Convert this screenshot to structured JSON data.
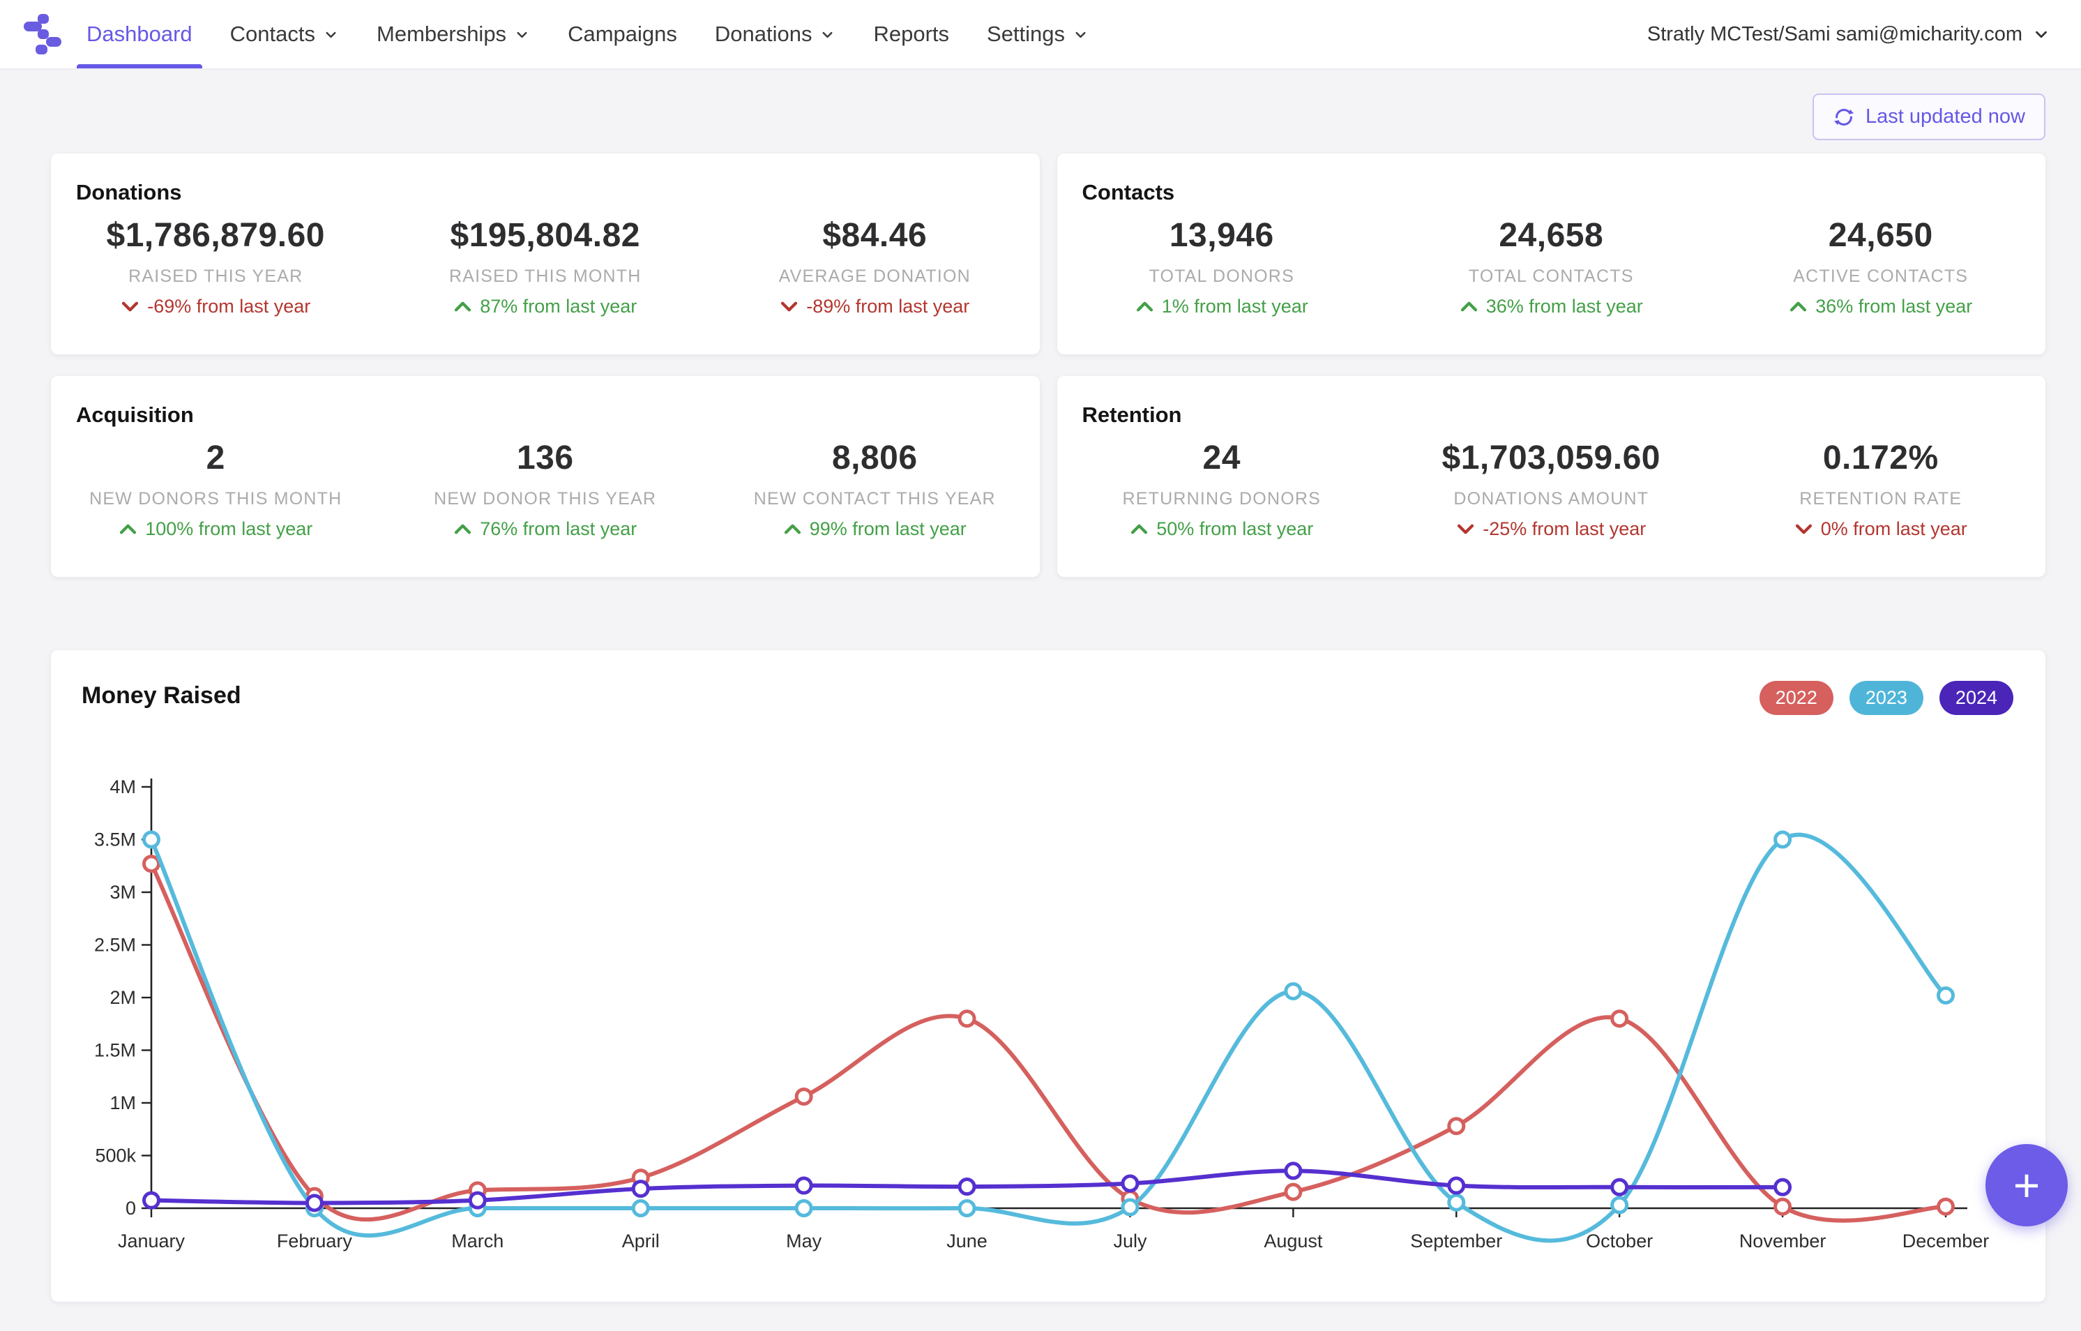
{
  "nav": {
    "items": [
      {
        "label": "Dashboard",
        "chevron": false,
        "active": true
      },
      {
        "label": "Contacts",
        "chevron": true,
        "active": false
      },
      {
        "label": "Memberships",
        "chevron": true,
        "active": false
      },
      {
        "label": "Campaigns",
        "chevron": false,
        "active": false
      },
      {
        "label": "Donations",
        "chevron": true,
        "active": false
      },
      {
        "label": "Reports",
        "chevron": false,
        "active": false
      },
      {
        "label": "Settings",
        "chevron": true,
        "active": false
      }
    ],
    "user_label": "Stratly MCTest/Sami sami@micharity.com"
  },
  "topbar": {
    "refresh_label": "Last updated now"
  },
  "stat_cards": [
    {
      "title": "Donations",
      "metrics": [
        {
          "value": "$1,786,879.60",
          "label": "RAISED THIS YEAR",
          "delta": "-69% from last year",
          "trend": "down"
        },
        {
          "value": "$195,804.82",
          "label": "RAISED THIS MONTH",
          "delta": "87% from last year",
          "trend": "up"
        },
        {
          "value": "$84.46",
          "label": "AVERAGE DONATION",
          "delta": "-89% from last year",
          "trend": "down"
        }
      ]
    },
    {
      "title": "Contacts",
      "metrics": [
        {
          "value": "13,946",
          "label": "TOTAL DONORS",
          "delta": "1% from last year",
          "trend": "up"
        },
        {
          "value": "24,658",
          "label": "TOTAL CONTACTS",
          "delta": "36% from last year",
          "trend": "up"
        },
        {
          "value": "24,650",
          "label": "ACTIVE CONTACTS",
          "delta": "36% from last year",
          "trend": "up"
        }
      ]
    },
    {
      "title": "Acquisition",
      "metrics": [
        {
          "value": "2",
          "label": "NEW DONORS THIS MONTH",
          "delta": "100% from last year",
          "trend": "up"
        },
        {
          "value": "136",
          "label": "NEW DONOR THIS YEAR",
          "delta": "76% from last year",
          "trend": "up"
        },
        {
          "value": "8,806",
          "label": "NEW CONTACT THIS YEAR",
          "delta": "99% from last year",
          "trend": "up"
        }
      ]
    },
    {
      "title": "Retention",
      "metrics": [
        {
          "value": "24",
          "label": "RETURNING DONORS",
          "delta": "50% from last year",
          "trend": "up"
        },
        {
          "value": "$1,703,059.60",
          "label": "DONATIONS AMOUNT",
          "delta": "-25% from last year",
          "trend": "down"
        },
        {
          "value": "0.172%",
          "label": "RETENTION RATE",
          "delta": "0% from last year",
          "trend": "down"
        }
      ]
    }
  ],
  "chart_data": {
    "type": "line",
    "title": "Money Raised",
    "x": [
      "January",
      "February",
      "March",
      "April",
      "May",
      "June",
      "July",
      "August",
      "September",
      "October",
      "November",
      "December"
    ],
    "y_ticks": [
      "0",
      "500k",
      "1M",
      "1.5M",
      "2M",
      "2.5M",
      "3M",
      "3.5M",
      "4M"
    ],
    "ylim": [
      0,
      4000000
    ],
    "grid": false,
    "legend_position": "top-right",
    "legend": [
      {
        "label": "2022",
        "color": "#D5605E"
      },
      {
        "label": "2023",
        "color": "#4FB5D8"
      },
      {
        "label": "2024",
        "color": "#4A25B8"
      }
    ],
    "series": [
      {
        "name": "2022",
        "color": "#D5605E",
        "values": [
          3270000,
          115000,
          170000,
          290000,
          1060000,
          1800000,
          90000,
          155000,
          780000,
          1800000,
          15000,
          15000
        ]
      },
      {
        "name": "2023",
        "color": "#55BADC",
        "values": [
          3500000,
          0,
          0,
          0,
          0,
          0,
          10000,
          2060000,
          55000,
          30000,
          3500000,
          2020000
        ]
      },
      {
        "name": "2024",
        "color": "#5530CF",
        "values": [
          75000,
          50000,
          75000,
          185000,
          215000,
          205000,
          235000,
          355000,
          215000,
          200000,
          200000,
          null
        ]
      }
    ]
  },
  "fab": {
    "label": "+"
  },
  "colors": {
    "accent": "#6658E5",
    "positive": "#43A047",
    "negative": "#B3362F",
    "fab": "#6C5CE7"
  }
}
